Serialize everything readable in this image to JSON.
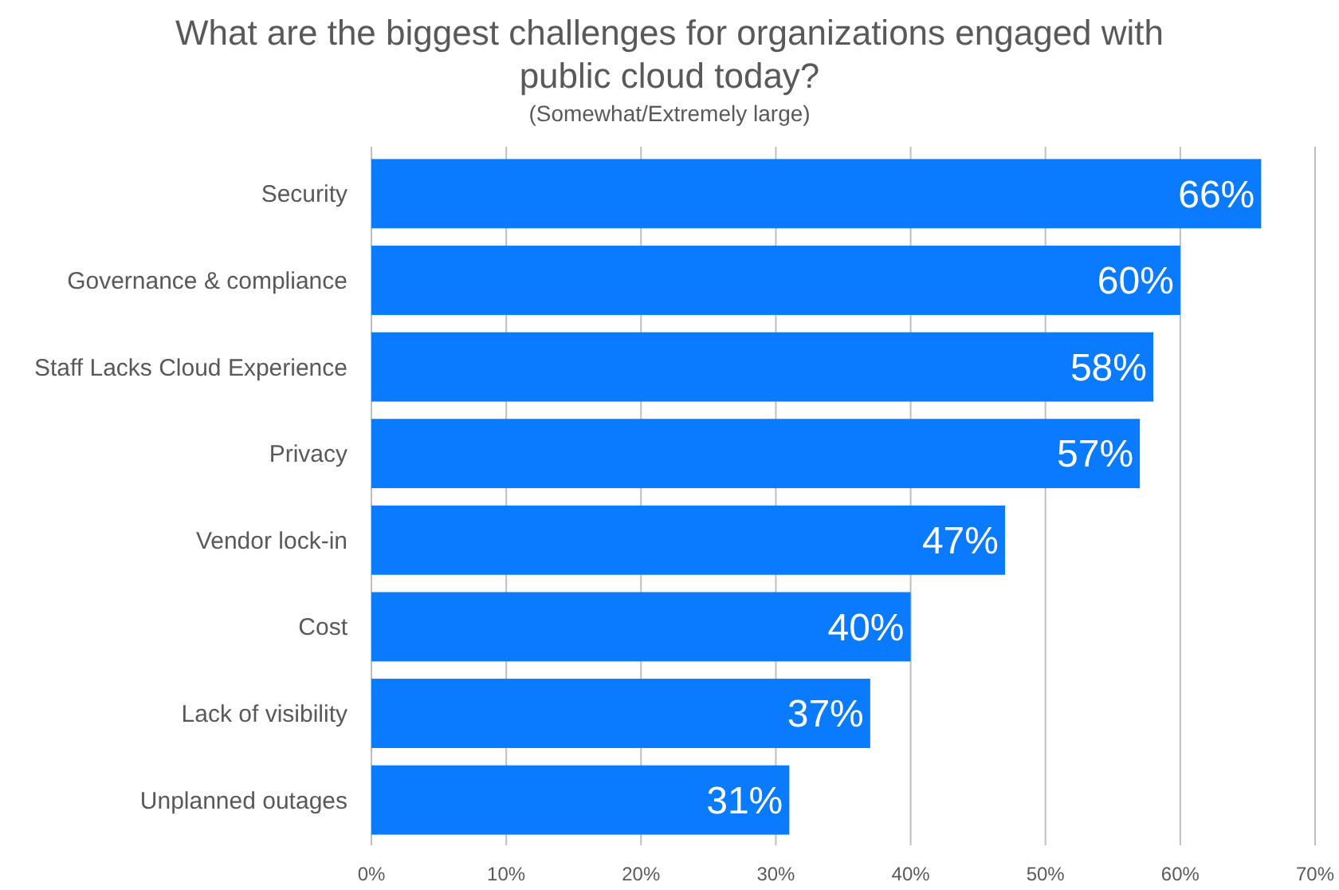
{
  "chart_data": {
    "type": "bar",
    "orientation": "horizontal",
    "title": "What are the biggest challenges for organizations engaged with public cloud today?",
    "subtitle": "(Somewhat/Extremely large)",
    "categories": [
      "Security",
      "Governance & compliance",
      "Staff Lacks Cloud Experience",
      "Privacy",
      "Vendor lock-in",
      "Cost",
      "Lack of visibility",
      "Unplanned outages"
    ],
    "values": [
      66,
      60,
      58,
      57,
      47,
      40,
      37,
      31
    ],
    "color": "#0a7bff",
    "value_labels": [
      "66%",
      "60%",
      "58%",
      "57%",
      "47%",
      "40%",
      "37%",
      "31%"
    ],
    "xlim": [
      0,
      70
    ],
    "xticks": [
      {
        "value": 0,
        "label": "0%"
      },
      {
        "value": 10,
        "label": "10%"
      },
      {
        "value": 20,
        "label": "20%"
      },
      {
        "value": 30,
        "label": "30%"
      },
      {
        "value": 40,
        "label": "40%"
      },
      {
        "value": 50,
        "label": "50%"
      },
      {
        "value": 60,
        "label": "60%"
      },
      {
        "value": 70,
        "label": "70%"
      }
    ],
    "grid": "x"
  }
}
